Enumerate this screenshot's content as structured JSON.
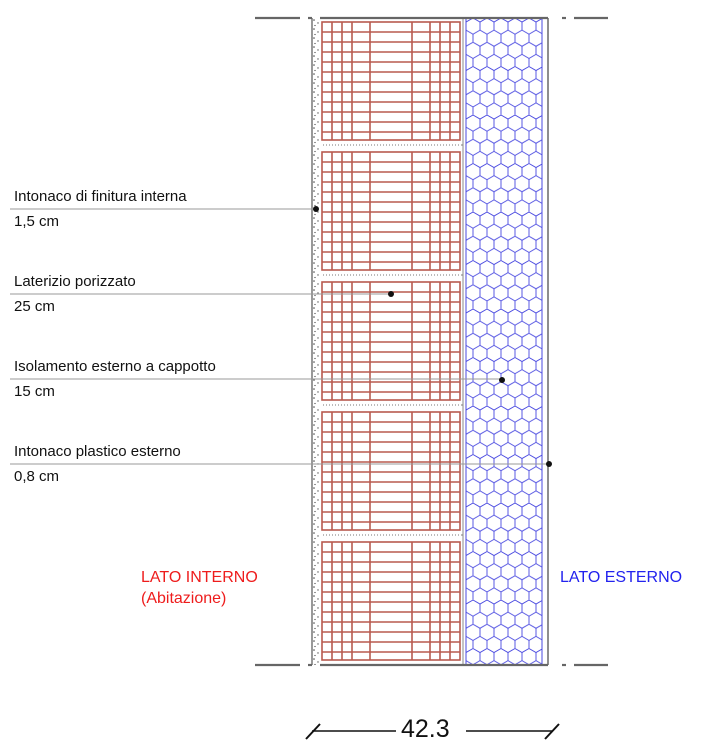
{
  "layers": [
    {
      "title": "Intonaco di finitura interna",
      "thickness": "1,5 cm"
    },
    {
      "title": "Laterizio porizzato",
      "thickness": "25 cm"
    },
    {
      "title": "Isolamento esterno a cappotto",
      "thickness": "15 cm"
    },
    {
      "title": "Intonaco plastico esterno",
      "thickness": "0,8 cm"
    }
  ],
  "sides": {
    "internal": {
      "line1": "LATO INTERNO",
      "line2": "(Abitazione)"
    },
    "external": "LATO ESTERNO"
  },
  "dimension": "42.3",
  "colors": {
    "brick": "#b85a4e",
    "insulation_hex": "#4848e0",
    "internal_text": "#ee1c1c",
    "external_text": "#2222ee",
    "leader": "#999999",
    "section_line": "#666666"
  }
}
